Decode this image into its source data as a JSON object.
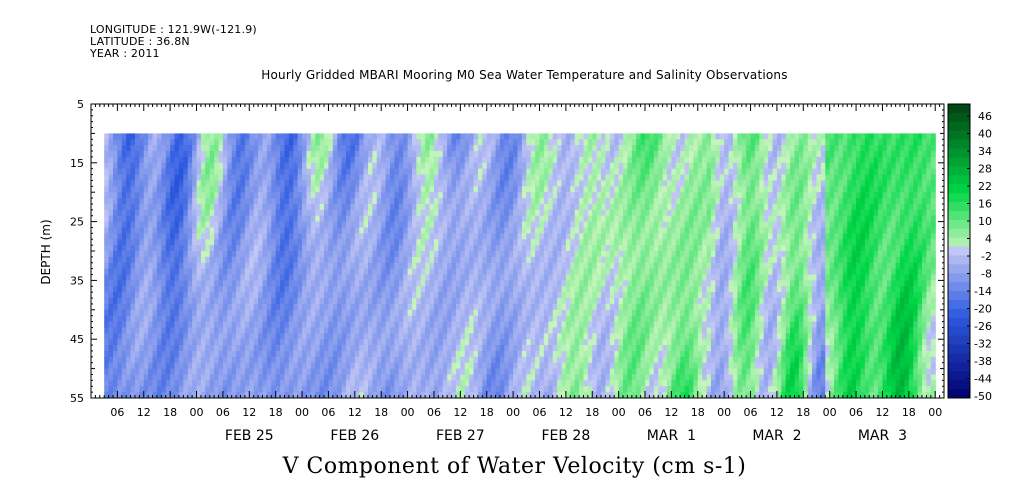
{
  "header": {
    "longitude": "LONGITUDE : 121.9W(-121.9)",
    "latitude": "LATITUDE : 36.8N",
    "year": "YEAR : 2011",
    "title": "Hourly Gridded MBARI Mooring M0 Sea Water Temperature and Salinity Observations"
  },
  "chart_data": {
    "type": "heatmap",
    "title": "Hourly Gridded MBARI Mooring M0 Sea Water Temperature and Salinity Observations",
    "xlabel": "V Component of Water Velocity (cm s-1)",
    "ylabel": "DEPTH (m)",
    "y_range": [
      5,
      55
    ],
    "y_inverted": true,
    "y_ticks": [
      5,
      15,
      25,
      35,
      45,
      55
    ],
    "data_depth_range": [
      10,
      55
    ],
    "x_range": [
      "2011-02-24 00:00",
      "2011-03-04 02:00"
    ],
    "data_time_range": [
      "2011-02-24 03:00",
      "2011-03-04 00:00"
    ],
    "x_hour_labels": [
      "06",
      "12",
      "18",
      "00",
      "06",
      "12",
      "18",
      "00",
      "06",
      "12",
      "18",
      "00",
      "06",
      "12",
      "18",
      "00",
      "06",
      "12",
      "18",
      "00",
      "06",
      "12",
      "18",
      "00",
      "06",
      "12",
      "18",
      "00",
      "06",
      "12",
      "18",
      "00"
    ],
    "x_day_labels": [
      "FEB 25",
      "FEB 26",
      "FEB 27",
      "FEB 28",
      "MAR  1",
      "MAR  2",
      "MAR  3"
    ],
    "colorbar_labels": [
      "46",
      "40",
      "34",
      "28",
      "22",
      "16",
      "10",
      "4",
      "-2",
      "-8",
      "-14",
      "-20",
      "-26",
      "-32",
      "-38",
      "-44",
      "-50"
    ],
    "colorbar_range": [
      -50,
      49
    ],
    "series_by_day": [
      {
        "day": "FEB 24",
        "typical_value": -15
      },
      {
        "day": "FEB 25",
        "typical_value": -8
      },
      {
        "day": "FEB 26",
        "typical_value": -10
      },
      {
        "day": "FEB 27",
        "typical_value": -5
      },
      {
        "day": "FEB 28",
        "typical_value": -6
      },
      {
        "day": "MAR  1",
        "typical_value": 5
      },
      {
        "day": "MAR  2",
        "typical_value": 4
      },
      {
        "day": "MAR  3",
        "typical_value": 14
      }
    ],
    "colors": {
      "negative": "#1a3fd8",
      "positive": "#00d040",
      "neutral": "#c8f0c0"
    }
  }
}
